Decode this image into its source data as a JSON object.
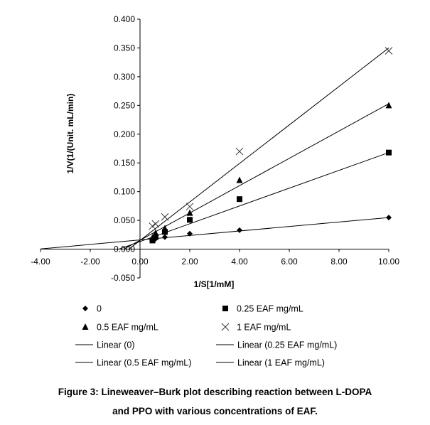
{
  "chart_data": {
    "type": "scatter",
    "xlabel": "1/S[1/mM]",
    "ylabel": "1/V(1/(Unit. mL/min)",
    "xlim": [
      -4,
      10
    ],
    "ylim": [
      -0.05,
      0.4
    ],
    "x_ticks": [
      "-4.00",
      "-2.00",
      "0.00",
      "2.00",
      "4.00",
      "6.00",
      "8.00",
      "10.00"
    ],
    "y_ticks": [
      "-0.050",
      "0.000",
      "0.050",
      "0.100",
      "0.150",
      "0.200",
      "0.250",
      "0.300",
      "0.350",
      "0.400"
    ],
    "grid": false,
    "legend_position": "bottom",
    "series": [
      {
        "name": "0",
        "marker": "diamond",
        "x": [
          0.5,
          0.625,
          1,
          2,
          4,
          10
        ],
        "y": [
          0.016,
          0.018,
          0.021,
          0.027,
          0.033,
          0.055
        ]
      },
      {
        "name": "0.25 EAF mg/mL",
        "marker": "square",
        "x": [
          0.5,
          0.625,
          1,
          2,
          4,
          10
        ],
        "y": [
          0.015,
          0.021,
          0.03,
          0.051,
          0.087,
          0.168
        ]
      },
      {
        "name": "0.5 EAF mg/mL",
        "marker": "triangle",
        "x": [
          0.5,
          0.625,
          1,
          2,
          4,
          10
        ],
        "y": [
          0.02,
          0.028,
          0.036,
          0.063,
          0.12,
          0.25
        ]
      },
      {
        "name": "1 EAF mg/mL",
        "marker": "cross",
        "x": [
          0.5,
          0.625,
          1,
          2,
          4,
          10
        ],
        "y": [
          0.04,
          0.044,
          0.056,
          0.074,
          0.17,
          0.345
        ]
      }
    ],
    "trendlines": [
      {
        "name": "Linear (0)",
        "x": [
          -4,
          10
        ],
        "y": [
          0.0004,
          0.055
        ]
      },
      {
        "name": "Linear (0.25 EAF mg/mL)",
        "x": [
          -0.85,
          10
        ],
        "y": [
          0,
          0.168
        ]
      },
      {
        "name": "Linear (0.5 EAF mg/mL)",
        "x": [
          -0.65,
          10
        ],
        "y": [
          0,
          0.253
        ]
      },
      {
        "name": "Linear (1 EAF mg/mL)",
        "x": [
          -0.45,
          10
        ],
        "y": [
          0,
          0.35
        ]
      }
    ],
    "caption_lines": [
      "Figure 3: Lineweaver–Burk plot describing reaction between L-DOPA",
      "and PPO with various concentrations of EAF."
    ]
  }
}
